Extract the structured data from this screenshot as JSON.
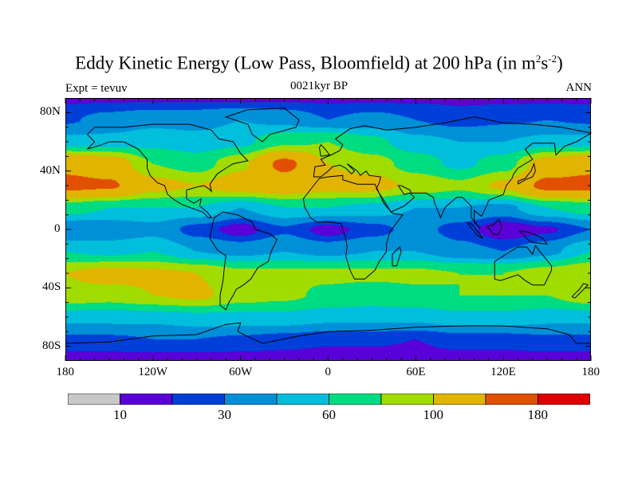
{
  "header": {
    "title_main": "Eddy Kinetic Energy (Low Pass, Bloomfield) at 200 hPa (in m",
    "title_sup1": "2",
    "title_s": "s",
    "title_sup2": "-2",
    "title_end": ")",
    "left_string": "Expt = tevuv",
    "center_string": "0021kyr BP",
    "right_string": "ANN"
  },
  "chart_data": {
    "type": "heatmap",
    "subtype": "filled-contour-map",
    "title": "Eddy Kinetic Energy (Low Pass, Bloomfield) at 200 hPa (in m2s-2)",
    "x_ticks": [
      "180",
      "120W",
      "60W",
      "0",
      "60E",
      "120E",
      "180"
    ],
    "x_tick_values": [
      -180,
      -120,
      -60,
      0,
      60,
      120,
      180
    ],
    "y_ticks": [
      "80N",
      "40N",
      "0",
      "40S",
      "80S"
    ],
    "y_tick_values": [
      80,
      40,
      0,
      -40,
      -80
    ],
    "xlim": [
      -180,
      180
    ],
    "ylim": [
      -90,
      90
    ],
    "grid_lons": [
      -180,
      -150,
      -120,
      -90,
      -60,
      -30,
      0,
      30,
      60,
      90,
      120,
      150,
      180
    ],
    "grid_lats": [
      90,
      75,
      60,
      45,
      30,
      15,
      0,
      -15,
      -30,
      -45,
      -60,
      -75,
      -90
    ],
    "values_approx": [
      [
        18,
        18,
        18,
        18,
        18,
        18,
        18,
        18,
        18,
        18,
        18,
        18,
        18
      ],
      [
        28,
        35,
        40,
        40,
        45,
        40,
        30,
        35,
        30,
        25,
        28,
        30,
        28
      ],
      [
        50,
        50,
        55,
        50,
        55,
        75,
        80,
        65,
        50,
        45,
        45,
        50,
        50
      ],
      [
        130,
        120,
        80,
        70,
        95,
        150,
        100,
        90,
        70,
        55,
        70,
        115,
        130
      ],
      [
        150,
        145,
        110,
        100,
        115,
        120,
        110,
        110,
        95,
        85,
        105,
        150,
        150
      ],
      [
        70,
        60,
        60,
        60,
        45,
        60,
        60,
        55,
        45,
        45,
        40,
        60,
        70
      ],
      [
        30,
        35,
        40,
        25,
        15,
        28,
        15,
        25,
        35,
        25,
        12,
        18,
        30
      ],
      [
        60,
        55,
        60,
        45,
        40,
        45,
        40,
        45,
        45,
        35,
        30,
        40,
        60
      ],
      [
        100,
        110,
        105,
        100,
        85,
        85,
        85,
        85,
        85,
        80,
        80,
        90,
        100
      ],
      [
        95,
        90,
        100,
        105,
        90,
        85,
        75,
        70,
        75,
        80,
        80,
        80,
        95
      ],
      [
        50,
        50,
        50,
        55,
        55,
        55,
        50,
        50,
        50,
        55,
        55,
        50,
        50
      ],
      [
        28,
        28,
        30,
        30,
        28,
        25,
        22,
        22,
        20,
        25,
        25,
        28,
        28
      ],
      [
        15,
        15,
        15,
        15,
        15,
        15,
        15,
        15,
        15,
        15,
        15,
        15,
        15
      ]
    ],
    "colorbar": {
      "levels": [
        10,
        20,
        30,
        45,
        60,
        80,
        100,
        140,
        180
      ],
      "labels": [
        "10",
        "30",
        "60",
        "100",
        "180"
      ],
      "label_levels": [
        10,
        30,
        60,
        100,
        180
      ],
      "colors": [
        "#c8c8c8",
        "#5a00d8",
        "#0040d8",
        "#0090d8",
        "#00bedc",
        "#00dc82",
        "#a0dc00",
        "#e0b400",
        "#e05000",
        "#e00000"
      ]
    }
  }
}
